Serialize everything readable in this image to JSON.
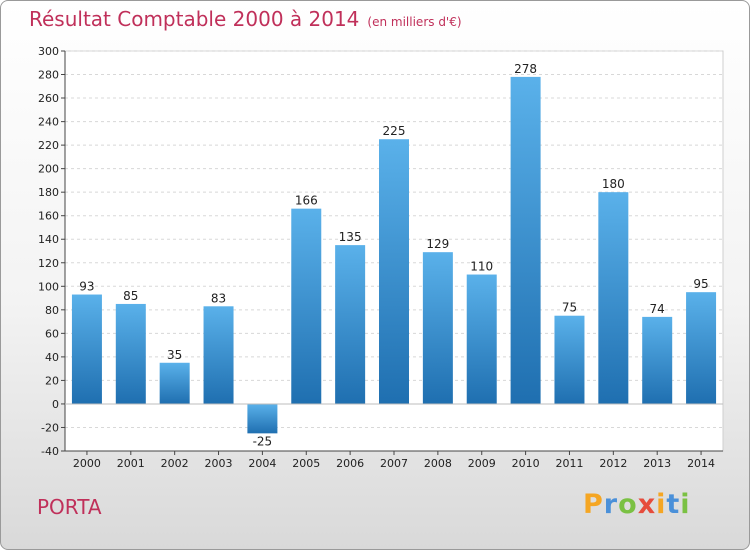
{
  "chart_data": {
    "type": "bar",
    "title": "Résultat Comptable 2000 à 2014",
    "subtitle": "(en milliers d'€)",
    "categories": [
      "2000",
      "2001",
      "2002",
      "2003",
      "2004",
      "2005",
      "2006",
      "2007",
      "2008",
      "2009",
      "2010",
      "2011",
      "2012",
      "2013",
      "2014"
    ],
    "values": [
      93,
      85,
      35,
      83,
      -25,
      166,
      135,
      225,
      129,
      110,
      278,
      75,
      180,
      74,
      95
    ],
    "ylim": [
      -40,
      300
    ],
    "yticks": [
      -40,
      -20,
      0,
      20,
      40,
      60,
      80,
      100,
      120,
      140,
      160,
      180,
      200,
      220,
      240,
      260,
      280,
      300
    ],
    "grid": true,
    "xlabel": "",
    "ylabel": ""
  },
  "location": "PORTA",
  "logo": {
    "letters": [
      "P",
      "r",
      "o",
      "x",
      "i",
      "t",
      "i"
    ],
    "colors": [
      "#f5a623",
      "#4a90d9",
      "#7ac143",
      "#e64c3c",
      "#f5a623",
      "#4a90d9",
      "#7ac143"
    ]
  },
  "colors": {
    "bar_top": "#5ab1ea",
    "bar_bottom": "#1f6fb0",
    "title": "#c0305a"
  }
}
